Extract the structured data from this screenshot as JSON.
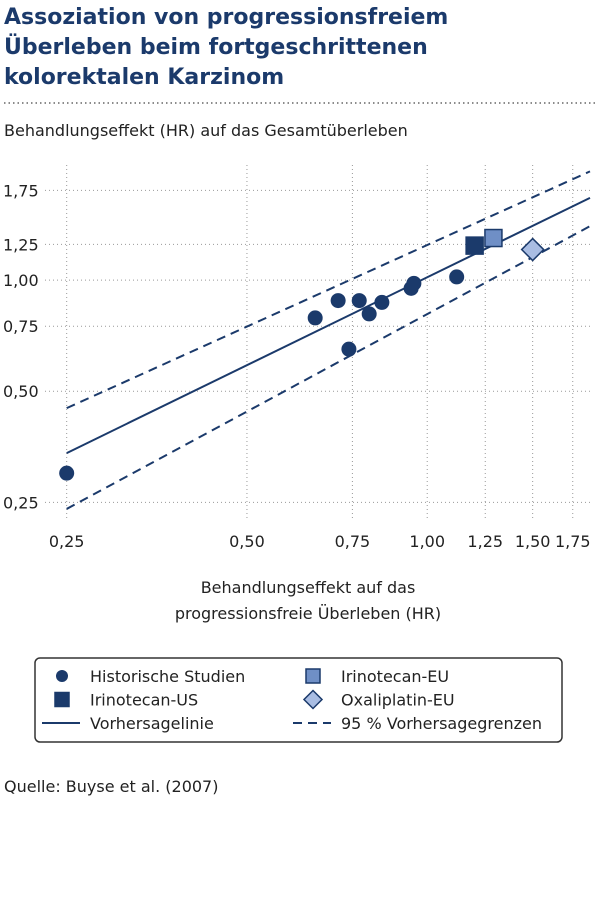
{
  "chart_data": {
    "type": "scatter",
    "title": [
      "Assoziation von progressionsfreiem",
      "Überleben beim fortgeschrittenen",
      "kolorektalen Karzinom"
    ],
    "subtitle": "Behandlungseffekt (HR) auf das Gesamtüberleben",
    "x_label": [
      "Behandlungseffekt auf das",
      "progressionsfreie Überleben (HR)"
    ],
    "source": "Quelle: Buyse et al. (2007)",
    "log_scale": true,
    "grid": true,
    "xlim": [
      0.23,
      1.87
    ],
    "ylim": [
      0.224,
      2.05
    ],
    "xticks": [
      {
        "value": 0.25,
        "label": "0,25"
      },
      {
        "value": 0.5,
        "label": "0,50"
      },
      {
        "value": 0.75,
        "label": "0,75"
      },
      {
        "value": 1.0,
        "label": "1,00"
      },
      {
        "value": 1.25,
        "label": "1,25"
      },
      {
        "value": 1.5,
        "label": "1,50"
      },
      {
        "value": 1.75,
        "label": "1,75"
      }
    ],
    "yticks": [
      {
        "value": 0.25,
        "label": "0,25"
      },
      {
        "value": 0.5,
        "label": "0,50"
      },
      {
        "value": 0.75,
        "label": "0,75"
      },
      {
        "value": 1.0,
        "label": "1,00"
      },
      {
        "value": 1.25,
        "label": "1,25"
      },
      {
        "value": 1.75,
        "label": "1,75"
      }
    ],
    "series": [
      {
        "name": "Historische Studien",
        "marker": "circle",
        "color": "#1b3a6b",
        "x": [
          0.25,
          0.65,
          0.71,
          0.74,
          0.77,
          0.8,
          0.84,
          0.94,
          0.95,
          1.12
        ],
        "values": [
          0.3,
          0.79,
          0.88,
          0.65,
          0.88,
          0.81,
          0.87,
          0.95,
          0.98,
          1.02
        ]
      },
      {
        "name": "Irinotecan-EU",
        "marker": "square",
        "color": "#6f8fc6",
        "x": [
          1.29
        ],
        "values": [
          1.3
        ]
      },
      {
        "name": "Irinotecan-US",
        "marker": "square",
        "color": "#1b3a6b",
        "x": [
          1.2
        ],
        "values": [
          1.24
        ]
      },
      {
        "name": "Oxaliplatin-EU",
        "marker": "diamond",
        "color": "#a9bde3",
        "x": [
          1.5
        ],
        "values": [
          1.21
        ]
      },
      {
        "name": "Vorhersagelinie",
        "marker": "line",
        "color": "#1b3a6b",
        "x": [
          0.25,
          1.87
        ],
        "values": [
          0.34,
          1.67
        ]
      },
      {
        "name": "95 % Vorhersagegrenzen",
        "marker": "dashed",
        "color": "#1b3a6b",
        "x": [
          0.25,
          1.87
        ],
        "values": [
          0.45,
          1.97
        ],
        "lower": [
          0.24,
          1.4
        ]
      }
    ]
  }
}
